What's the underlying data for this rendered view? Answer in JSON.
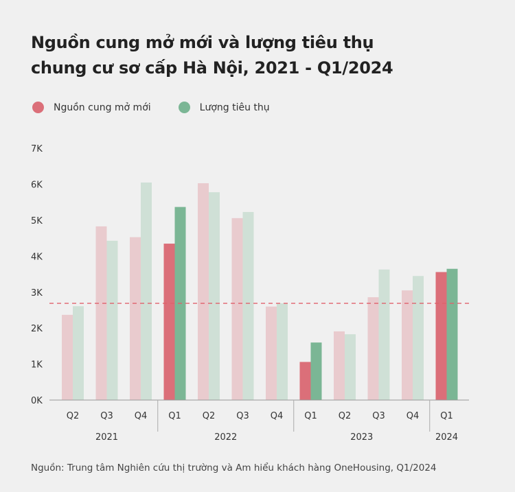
{
  "chart_data": {
    "type": "bar",
    "title": "Nguồn cung mở mới và lượng tiêu thụ chung cư sơ cấp Hà Nội, 2021 - Q1/2024",
    "title_lines": [
      "Nguồn cung mở mới và lượng tiêu thụ",
      "chung cư sơ cấp Hà Nội, 2021 - Q1/2024"
    ],
    "categories": [
      "Q2",
      "Q3",
      "Q4",
      "Q1",
      "Q2",
      "Q3",
      "Q4",
      "Q1",
      "Q2",
      "Q3",
      "Q4",
      "Q1"
    ],
    "year_groups": [
      {
        "label": "2021",
        "count": 3
      },
      {
        "label": "2022",
        "count": 4
      },
      {
        "label": "2023",
        "count": 4
      },
      {
        "label": "2024",
        "count": 1
      }
    ],
    "highlighted": [
      false,
      false,
      false,
      true,
      false,
      false,
      false,
      true,
      false,
      false,
      false,
      true
    ],
    "series": [
      {
        "name": "Nguồn cung mở mới",
        "color": "#db6f79",
        "faded_color": "#e9cbce",
        "values": [
          2370,
          4830,
          4530,
          4350,
          6030,
          5060,
          2600,
          1060,
          1910,
          2860,
          3050,
          3560
        ]
      },
      {
        "name": "Lượng tiêu thụ",
        "color": "#7bb695",
        "faded_color": "#cfe0d6",
        "values": [
          2610,
          4430,
          6050,
          5370,
          5780,
          5230,
          2690,
          1600,
          1830,
          3630,
          3450,
          3650
        ]
      }
    ],
    "reference_line": {
      "value": 2690,
      "color": "#e0606c",
      "style": "dashed"
    },
    "ylim": [
      0,
      7000
    ],
    "yticks": [
      0,
      1000,
      2000,
      3000,
      4000,
      5000,
      6000,
      7000
    ],
    "ytick_labels": [
      "0K",
      "1K",
      "2K",
      "3K",
      "4K",
      "5K",
      "6K",
      "7K"
    ],
    "xlabel": "",
    "ylabel": "",
    "grid": false,
    "legend_position": "top-left"
  },
  "source": "Nguồn: Trung tâm Nghiên cứu thị trường và Am hiểu khách hàng OneHousing, Q1/2024"
}
